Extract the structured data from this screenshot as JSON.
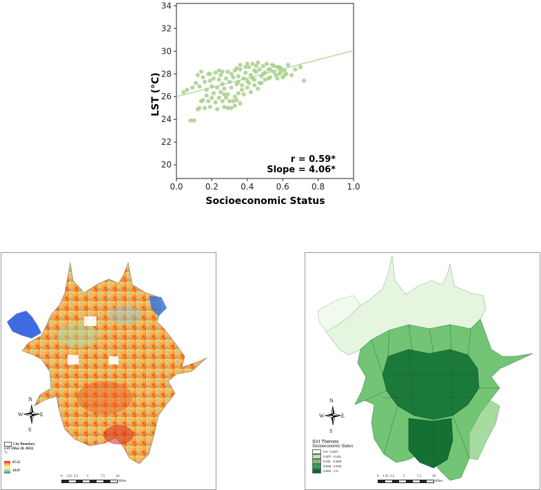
{
  "chart_data": {
    "type": "scatter",
    "xlabel": "Socioeconomic Status",
    "ylabel": "LST (°C)",
    "xlim": [
      0.0,
      1.0
    ],
    "ylim": [
      18.8,
      34.2
    ],
    "xticks": [
      "0.0",
      "0.2",
      "0.4",
      "0.6",
      "0.8",
      "1.0"
    ],
    "yticks": [
      "20",
      "22",
      "24",
      "26",
      "28",
      "30",
      "32",
      "34"
    ],
    "annotations": [
      "r = 0.59*",
      "Slope = 4.06*"
    ],
    "point_color": "#a8d08d",
    "trend_line": {
      "intercept": 26.0,
      "slope": 4.06,
      "x": [
        0.0,
        1.0
      ]
    },
    "points": [
      [
        0.08,
        23.9
      ],
      [
        0.1,
        23.9
      ],
      [
        0.12,
        24.9
      ],
      [
        0.13,
        25.0
      ],
      [
        0.14,
        25.6
      ],
      [
        0.15,
        25.7
      ],
      [
        0.16,
        25.0
      ],
      [
        0.17,
        26.1
      ],
      [
        0.18,
        25.6
      ],
      [
        0.19,
        25.1
      ],
      [
        0.2,
        25.9
      ],
      [
        0.21,
        26.3
      ],
      [
        0.22,
        25.5
      ],
      [
        0.23,
        24.9
      ],
      [
        0.24,
        25.9
      ],
      [
        0.25,
        26.4
      ],
      [
        0.26,
        25.6
      ],
      [
        0.27,
        25.1
      ],
      [
        0.28,
        25.9
      ],
      [
        0.29,
        26.2
      ],
      [
        0.3,
        25.6
      ],
      [
        0.31,
        25.0
      ],
      [
        0.32,
        25.6
      ],
      [
        0.33,
        26.0
      ],
      [
        0.34,
        25.7
      ],
      [
        0.35,
        26.3
      ],
      [
        0.36,
        25.4
      ],
      [
        0.04,
        26.4
      ],
      [
        0.06,
        26.6
      ],
      [
        0.09,
        26.8
      ],
      [
        0.11,
        27.2
      ],
      [
        0.12,
        27.9
      ],
      [
        0.13,
        26.9
      ],
      [
        0.15,
        27.7
      ],
      [
        0.16,
        27.3
      ],
      [
        0.17,
        26.6
      ],
      [
        0.18,
        28.0
      ],
      [
        0.19,
        27.4
      ],
      [
        0.2,
        26.9
      ],
      [
        0.21,
        27.6
      ],
      [
        0.22,
        28.1
      ],
      [
        0.23,
        26.8
      ],
      [
        0.24,
        27.5
      ],
      [
        0.25,
        27.9
      ],
      [
        0.26,
        27.1
      ],
      [
        0.27,
        26.7
      ],
      [
        0.28,
        27.6
      ],
      [
        0.29,
        28.2
      ],
      [
        0.3,
        27.3
      ],
      [
        0.31,
        26.8
      ],
      [
        0.32,
        27.7
      ],
      [
        0.33,
        28.3
      ],
      [
        0.34,
        27.1
      ],
      [
        0.35,
        27.8
      ],
      [
        0.36,
        28.4
      ],
      [
        0.37,
        27.0
      ],
      [
        0.38,
        27.6
      ],
      [
        0.39,
        28.1
      ],
      [
        0.4,
        27.4
      ],
      [
        0.41,
        28.6
      ],
      [
        0.42,
        27.9
      ],
      [
        0.43,
        28.9
      ],
      [
        0.44,
        27.5
      ],
      [
        0.45,
        28.2
      ],
      [
        0.46,
        29.0
      ],
      [
        0.47,
        28.4
      ],
      [
        0.48,
        27.8
      ],
      [
        0.49,
        28.7
      ],
      [
        0.5,
        28.1
      ],
      [
        0.51,
        28.9
      ],
      [
        0.52,
        27.6
      ],
      [
        0.53,
        28.4
      ],
      [
        0.54,
        28.8
      ],
      [
        0.55,
        28.2
      ],
      [
        0.56,
        27.9
      ],
      [
        0.57,
        28.6
      ],
      [
        0.58,
        28.0
      ],
      [
        0.59,
        28.5
      ],
      [
        0.6,
        27.7
      ],
      [
        0.61,
        28.3
      ],
      [
        0.62,
        28.0
      ],
      [
        0.63,
        28.8
      ],
      [
        0.65,
        27.9
      ],
      [
        0.67,
        28.4
      ],
      [
        0.7,
        28.6
      ],
      [
        0.72,
        27.4
      ],
      [
        0.38,
        26.2
      ],
      [
        0.4,
        26.8
      ],
      [
        0.42,
        26.4
      ],
      [
        0.44,
        27.0
      ],
      [
        0.46,
        26.7
      ],
      [
        0.48,
        27.2
      ],
      [
        0.27,
        26.2
      ],
      [
        0.29,
        25.0
      ],
      [
        0.33,
        25.2
      ],
      [
        0.37,
        26.6
      ],
      [
        0.41,
        27.2
      ],
      [
        0.43,
        27.6
      ],
      [
        0.47,
        27.2
      ],
      [
        0.5,
        27.5
      ],
      [
        0.53,
        27.7
      ],
      [
        0.55,
        28.7
      ],
      [
        0.57,
        27.6
      ],
      [
        0.59,
        28.2
      ],
      [
        0.45,
        28.7
      ],
      [
        0.39,
        28.6
      ],
      [
        0.36,
        28.8
      ],
      [
        0.34,
        28.5
      ],
      [
        0.31,
        28.0
      ],
      [
        0.26,
        28.2
      ],
      [
        0.14,
        28.2
      ],
      [
        0.19,
        28.0
      ],
      [
        0.24,
        28.3
      ],
      [
        0.52,
        28.4
      ],
      [
        0.49,
        28.0
      ],
      [
        0.44,
        28.3
      ],
      [
        0.4,
        28.9
      ],
      [
        0.58,
        28.6
      ],
      [
        0.61,
        27.9
      ],
      [
        0.35,
        27.3
      ]
    ]
  },
  "lst_map": {
    "legend": {
      "boundary_label": "City Boundary",
      "title": "LST (May 28, 2022)",
      "unit": "°C",
      "high": "47.52",
      "low": "19.97"
    },
    "compass": {
      "n": "N",
      "s": "S",
      "e": "E",
      "w": "W"
    },
    "scale": {
      "ticks": [
        "0",
        "1.25",
        "2.5",
        "5",
        "7.5",
        "10"
      ],
      "unit": "Miles"
    }
  },
  "svi_map": {
    "legend": {
      "title": "SVI Themes",
      "subtitle": "Socioeconomic Status",
      "classes": [
        {
          "label": "0.0 - 0.207",
          "color": "#edf8e9"
        },
        {
          "label": "0.207 - 0.411",
          "color": "#bae4b3"
        },
        {
          "label": "0.411 - 0.626",
          "color": "#74c476"
        },
        {
          "label": "0.626 - 0.842",
          "color": "#31a354"
        },
        {
          "label": "0.842 - 1.0",
          "color": "#006d2c"
        }
      ]
    },
    "compass": {
      "n": "N",
      "s": "S",
      "e": "E",
      "w": "W"
    },
    "scale": {
      "ticks": [
        "0",
        "1.25",
        "2.5",
        "5",
        "7.5",
        "10"
      ],
      "unit": "Miles"
    }
  }
}
